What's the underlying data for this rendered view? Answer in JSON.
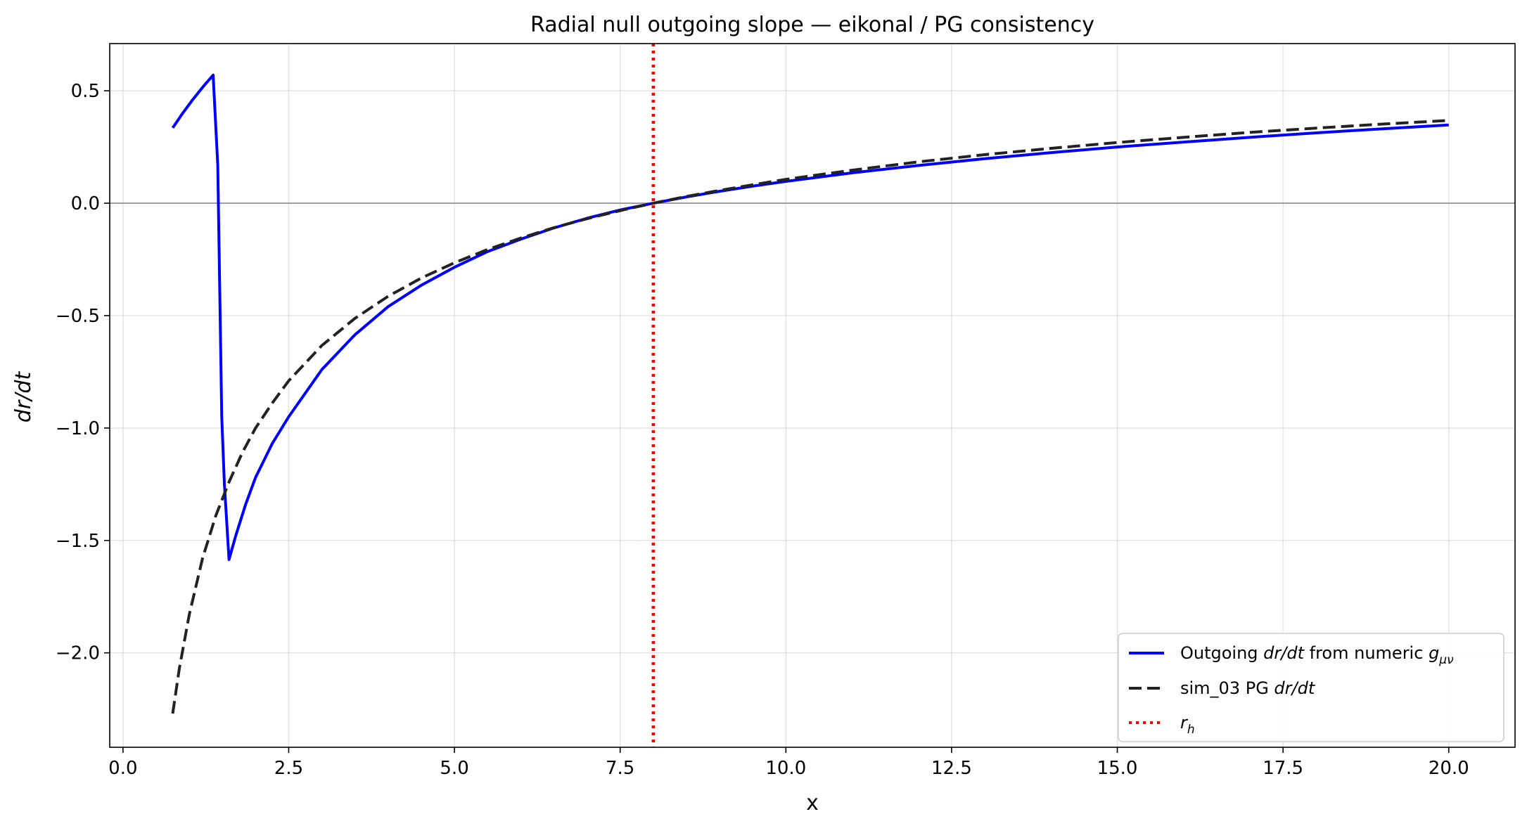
{
  "chart_data": {
    "type": "line",
    "title": "Radial null outgoing slope — eikonal / PG consistency",
    "xlabel": "x",
    "ylabel": "dr/dt",
    "xlim": [
      -0.2,
      21.0
    ],
    "ylim": [
      -2.42,
      0.71
    ],
    "xticks": [
      0.0,
      2.5,
      5.0,
      7.5,
      10.0,
      12.5,
      15.0,
      17.5,
      20.0
    ],
    "xtick_labels": [
      "0.0",
      "2.5",
      "5.0",
      "7.5",
      "10.0",
      "12.5",
      "15.0",
      "17.5",
      "20.0"
    ],
    "yticks": [
      0.5,
      0.0,
      -0.5,
      -1.0,
      -1.5,
      -2.0
    ],
    "ytick_labels": [
      "0.5",
      "0.0",
      "−0.5",
      "−1.0",
      "−1.5",
      "−2.0"
    ],
    "grid": true,
    "zero_line": {
      "y": 0.0,
      "color": "#999999"
    },
    "horizon_line": {
      "x": 8.0,
      "color": "#ff0000",
      "style": "dotted"
    },
    "legend": {
      "placement": "lower-right",
      "entries": [
        {
          "prefix": "Outgoing ",
          "italic": "dr/dt",
          "suffix": " from numeric ",
          "sym": "g",
          "sub": "μν",
          "color": "#0000ff",
          "style": "solid"
        },
        {
          "prefix": "sim_03 PG ",
          "italic": "dr/dt",
          "suffix": "",
          "sym": "",
          "sub": "",
          "color": "#222222",
          "style": "dashed"
        },
        {
          "prefix": "",
          "italic": "",
          "suffix": "",
          "sym": "r",
          "sub": "h",
          "color": "#ff0000",
          "style": "dotted"
        }
      ]
    },
    "series": [
      {
        "name": "Outgoing dr/dt from numeric gμν",
        "color": "#0000ff",
        "style": "solid",
        "x": [
          0.75,
          0.9,
          1.05,
          1.2,
          1.36,
          1.43,
          1.49,
          1.53,
          1.6,
          1.7,
          1.85,
          2.0,
          2.25,
          2.5,
          3.0,
          3.5,
          4.0,
          4.5,
          5.0,
          5.5,
          6.0,
          6.5,
          7.0,
          7.5,
          8.0,
          8.5,
          9.0,
          9.5,
          10.0,
          11.0,
          12.0,
          13.0,
          14.0,
          15.0,
          16.0,
          17.0,
          18.0,
          19.0,
          20.0
        ],
        "y": [
          0.335,
          0.4,
          0.46,
          0.515,
          0.57,
          0.17,
          -0.95,
          -1.25,
          -1.585,
          -1.48,
          -1.34,
          -1.22,
          -1.07,
          -0.95,
          -0.74,
          -0.585,
          -0.46,
          -0.365,
          -0.285,
          -0.215,
          -0.16,
          -0.11,
          -0.067,
          -0.03,
          0.0,
          0.028,
          0.053,
          0.076,
          0.097,
          0.135,
          0.168,
          0.198,
          0.225,
          0.25,
          0.272,
          0.293,
          0.313,
          0.331,
          0.348
        ]
      },
      {
        "name": "sim_03 PG dr/dt",
        "color": "#222222",
        "style": "dashed",
        "x": [
          0.75,
          0.85,
          1.0,
          1.2,
          1.4,
          1.6,
          1.8,
          2.0,
          2.25,
          2.5,
          3.0,
          3.5,
          4.0,
          4.5,
          5.0,
          5.5,
          6.0,
          6.5,
          7.0,
          7.5,
          8.0,
          8.5,
          9.0,
          9.5,
          10.0,
          11.0,
          12.0,
          13.0,
          14.0,
          15.0,
          16.0,
          17.0,
          18.0,
          19.0,
          20.0
        ],
        "y": [
          -2.27,
          -2.07,
          -1.83,
          -1.58,
          -1.39,
          -1.24,
          -1.11,
          -1.0,
          -0.89,
          -0.79,
          -0.633,
          -0.512,
          -0.414,
          -0.333,
          -0.265,
          -0.206,
          -0.155,
          -0.109,
          -0.069,
          -0.033,
          0.0,
          0.03,
          0.057,
          0.082,
          0.106,
          0.147,
          0.184,
          0.216,
          0.244,
          0.27,
          0.293,
          0.315,
          0.334,
          0.352,
          0.368
        ]
      }
    ]
  }
}
